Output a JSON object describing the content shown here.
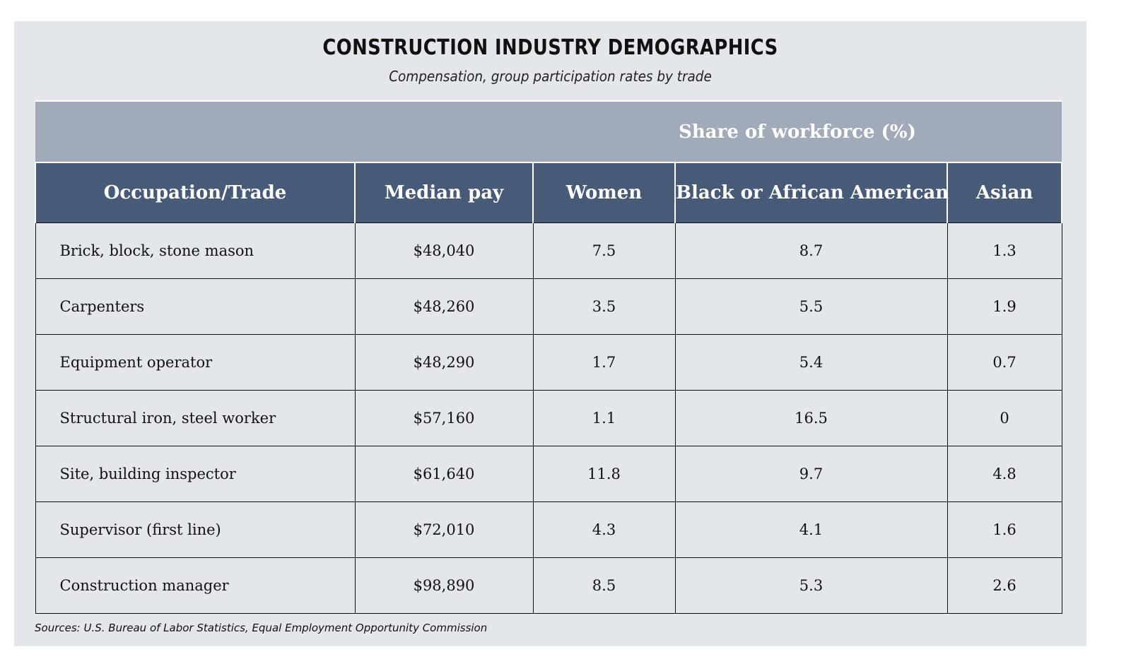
{
  "title": "CONSTRUCTION INDUSTRY DEMOGRAPHICS",
  "subtitle": "Compensation, group participation rates by trade",
  "group_header": "Share of workforce (%)",
  "columns": [
    "Occupation/Trade",
    "Median pay",
    "Women",
    "Black or African American",
    "Asian"
  ],
  "rows": [
    [
      "Brick, block, stone mason",
      "$48,040",
      "7.5",
      "8.7",
      "1.3"
    ],
    [
      "Carpenters",
      "$48,260",
      "3.5",
      "5.5",
      "1.9"
    ],
    [
      "Equipment operator",
      "$48,290",
      "1.7",
      "5.4",
      "0.7"
    ],
    [
      "Structural iron, steel worker",
      "$57,160",
      "1.1",
      "16.5",
      "0"
    ],
    [
      "Site, building inspector",
      "$61,640",
      "11.8",
      "9.7",
      "4.8"
    ],
    [
      "Supervisor (first line)",
      "$72,010",
      "4.3",
      "4.1",
      "1.6"
    ],
    [
      "Construction manager",
      "$98,890",
      "8.5",
      "5.3",
      "2.6"
    ]
  ],
  "source": "Sources: U.S. Bureau of Labor Statistics, Equal Employment Opportunity Commission",
  "colors": {
    "panel": "#e3e6eb",
    "band": "#a1aab9",
    "header": "#475a78"
  },
  "chart_data": {
    "type": "table",
    "title": "CONSTRUCTION INDUSTRY DEMOGRAPHICS",
    "subtitle": "Compensation, group participation rates by trade",
    "columns": [
      "Occupation/Trade",
      "Median pay",
      "Women",
      "Black or African American",
      "Asian"
    ],
    "column_group": {
      "label": "Share of workforce (%)",
      "columns": [
        "Women",
        "Black or African American",
        "Asian"
      ]
    },
    "rows": [
      {
        "trade": "Brick, block, stone mason",
        "median_pay": 48040,
        "women": 7.5,
        "black": 8.7,
        "asian": 1.3
      },
      {
        "trade": "Carpenters",
        "median_pay": 48260,
        "women": 3.5,
        "black": 5.5,
        "asian": 1.9
      },
      {
        "trade": "Equipment operator",
        "median_pay": 48290,
        "women": 1.7,
        "black": 5.4,
        "asian": 0.7
      },
      {
        "trade": "Structural iron, steel worker",
        "median_pay": 57160,
        "women": 1.1,
        "black": 16.5,
        "asian": 0
      },
      {
        "trade": "Site, building inspector",
        "median_pay": 61640,
        "women": 11.8,
        "black": 9.7,
        "asian": 4.8
      },
      {
        "trade": "Supervisor (first line)",
        "median_pay": 72010,
        "women": 4.3,
        "black": 4.1,
        "asian": 1.6
      },
      {
        "trade": "Construction manager",
        "median_pay": 98890,
        "women": 8.5,
        "black": 5.3,
        "asian": 2.6
      }
    ]
  }
}
